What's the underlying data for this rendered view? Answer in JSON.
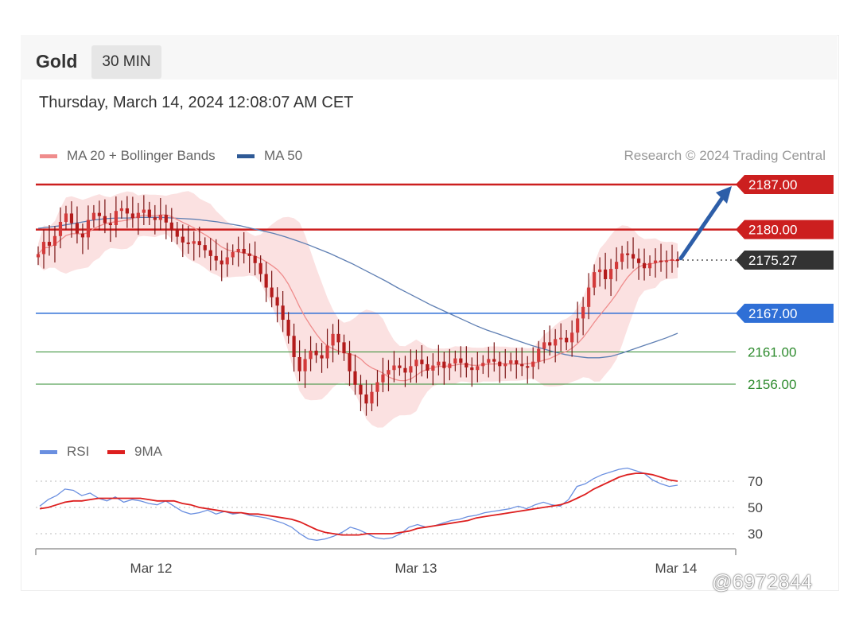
{
  "header": {
    "title": "Gold",
    "timeframe": "30 MIN"
  },
  "timestamp": "Thursday, March 14, 2024 12:08:07 AM CET",
  "legend_main": [
    {
      "label": "MA 20 + Bollinger Bands",
      "color": "#ef8c8c"
    },
    {
      "label": "MA 50",
      "color": "#2f5a96"
    }
  ],
  "copyright": "Research © 2024 Trading Central",
  "legend_rsi": [
    {
      "label": "RSI",
      "color": "#6a8fe0"
    },
    {
      "label": "9MA",
      "color": "#dd1f1f"
    }
  ],
  "watermark": "@6972844",
  "colors": {
    "resistance": "#cc1f1f",
    "current": "#333333",
    "support_pivot": "#2f6fd6",
    "support": "#2e8b2e",
    "arrow": "#2d5ea8",
    "candle": "#b31b1b",
    "band": "#fbe1e1"
  },
  "chart_data": {
    "type": "line",
    "title": "Gold",
    "x_ticks": [
      "Mar 12",
      "Mar 13",
      "Mar 14"
    ],
    "price_levels": [
      {
        "value": 2187.0,
        "label": "2187.00",
        "kind": "resistance"
      },
      {
        "value": 2180.0,
        "label": "2180.00",
        "kind": "resistance"
      },
      {
        "value": 2175.27,
        "label": "2175.27",
        "kind": "current"
      },
      {
        "value": 2167.0,
        "label": "2167.00",
        "kind": "pivot"
      },
      {
        "value": 2161.0,
        "label": "2161.00",
        "kind": "support"
      },
      {
        "value": 2156.0,
        "label": "2156.00",
        "kind": "support"
      }
    ],
    "close": [
      2176.2,
      2178.1,
      2177.5,
      2179.0,
      2181.2,
      2182.5,
      2181.0,
      2179.4,
      2178.8,
      2181.5,
      2182.6,
      2182.1,
      2181.0,
      2180.7,
      2182.9,
      2183.3,
      2182.5,
      2181.8,
      2182.6,
      2183.1,
      2181.9,
      2181.5,
      2182.3,
      2181.1,
      2180.0,
      2178.9,
      2178.0,
      2177.8,
      2178.2,
      2177.6,
      2176.8,
      2175.9,
      2175.2,
      2174.6,
      2175.7,
      2176.5,
      2177.0,
      2176.3,
      2175.9,
      2174.8,
      2173.1,
      2171.0,
      2169.5,
      2168.2,
      2166.0,
      2163.5,
      2160.2,
      2158.0,
      2159.9,
      2161.2,
      2160.5,
      2160.0,
      2162.0,
      2163.8,
      2162.5,
      2160.8,
      2158.0,
      2155.9,
      2154.4,
      2153.0,
      2154.8,
      2156.3,
      2157.5,
      2158.2,
      2158.9,
      2158.5,
      2157.8,
      2158.8,
      2159.8,
      2159.1,
      2158.1,
      2158.9,
      2159.5,
      2158.5,
      2159.2,
      2160.0,
      2159.3,
      2158.6,
      2158.2,
      2158.8,
      2159.3,
      2159.9,
      2159.5,
      2158.8,
      2159.2,
      2159.7,
      2159.1,
      2158.8,
      2158.7,
      2159.5,
      2161.5,
      2162.5,
      2162.0,
      2163.0,
      2163.2,
      2162.5,
      2164.0,
      2166.2,
      2168.0,
      2171.0,
      2173.4,
      2173.8,
      2172.3,
      2173.9,
      2175.0,
      2176.3,
      2176.2,
      2175.5,
      2174.8,
      2174.0,
      2174.8,
      2175.2,
      2175.0,
      2175.2,
      2175.4,
      2175.3
    ],
    "ma50": [
      2180.2,
      2180.4,
      2180.6,
      2180.9,
      2181.2,
      2181.5,
      2181.7,
      2181.8,
      2181.8,
      2181.9,
      2181.9,
      2181.9,
      2181.8,
      2181.7,
      2181.6,
      2181.4,
      2181.2,
      2180.9,
      2180.6,
      2180.2,
      2179.8,
      2179.4,
      2178.9,
      2178.3,
      2177.7,
      2177.0,
      2176.3,
      2175.5,
      2174.7,
      2173.8,
      2172.9,
      2172.0,
      2171.0,
      2170.1,
      2169.2,
      2168.3,
      2167.5,
      2166.7,
      2165.9,
      2165.1,
      2164.4,
      2163.8,
      2163.2,
      2162.6,
      2162.0,
      2161.5,
      2161.0,
      2160.6,
      2160.3,
      2160.1,
      2160.1,
      2160.3,
      2160.8,
      2161.4,
      2162.0,
      2162.6,
      2163.2,
      2163.9
    ],
    "rsi": [
      51,
      56,
      59,
      64,
      63,
      59,
      61,
      57,
      55,
      58,
      54,
      56,
      55,
      53,
      52,
      55,
      51,
      47,
      45,
      46,
      48,
      45,
      47,
      45,
      46,
      44,
      43,
      42,
      40,
      38,
      35,
      30,
      26,
      25,
      26,
      28,
      31,
      35,
      33,
      30,
      27,
      26,
      27,
      30,
      35,
      37,
      35,
      36,
      38,
      40,
      41,
      43,
      44,
      46,
      47,
      48,
      49,
      51,
      49,
      52,
      54,
      52,
      51,
      56,
      66,
      68,
      72,
      75,
      77,
      79,
      80,
      78,
      76,
      71,
      68,
      66,
      67
    ],
    "rsi_ma": [
      49,
      50,
      52,
      54,
      55,
      55,
      56,
      57,
      57,
      57,
      57,
      57,
      57,
      56,
      55,
      55,
      55,
      53,
      52,
      50,
      49,
      48,
      47,
      46,
      46,
      45,
      45,
      44,
      43,
      42,
      41,
      39,
      36,
      33,
      31,
      30,
      29,
      29,
      29,
      30,
      30,
      30,
      30,
      31,
      32,
      34,
      35,
      36,
      37,
      38,
      39,
      40,
      42,
      43,
      44,
      45,
      46,
      47,
      48,
      49,
      50,
      51,
      52,
      54,
      57,
      60,
      64,
      67,
      70,
      73,
      75,
      76,
      76,
      75,
      73,
      71,
      70
    ],
    "rsi_levels": [
      70,
      50,
      30
    ],
    "ylim_price": [
      2150,
      2190
    ],
    "ylim_rsi": [
      15,
      85
    ]
  }
}
